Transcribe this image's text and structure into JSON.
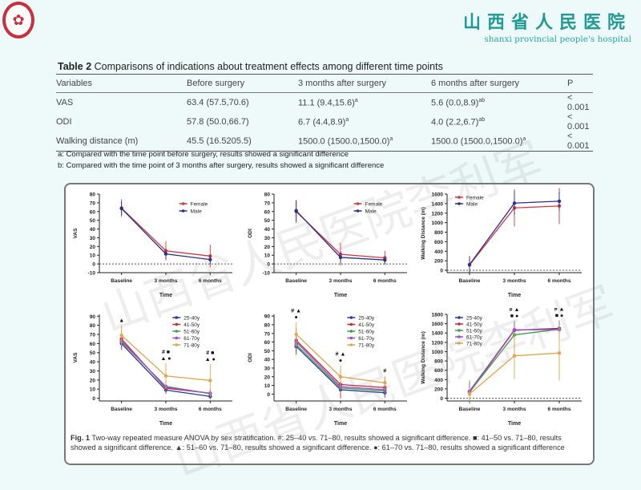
{
  "header": {
    "logo_text": "1950",
    "hospital_cn": "山西省人民医院",
    "hospital_en": "shanxi provincial people's hospital",
    "watermark": "山西省人民医院李利军"
  },
  "table": {
    "title_bold": "Table 2",
    "title": " Comparisons of indications about treatment effects among different time points",
    "columns": [
      "Variables",
      "Before surgery",
      "3 months after surgery",
      "6 months after surgery",
      "P"
    ],
    "rows": [
      {
        "variable": "VAS",
        "before": "63.4 (57.5,70.6)",
        "m3": "11.1 (9.4,15.6)",
        "m3_sup": "a",
        "m6": "5.6 (0.0,8.9)",
        "m6_sup": "ab",
        "p": "< 0.001"
      },
      {
        "variable": "ODI",
        "before": "57.8 (50.0,66.7)",
        "m3": "6.7 (4.4,8.9)",
        "m3_sup": "a",
        "m6": "4.0 (2.2,6.7)",
        "m6_sup": "ab",
        "p": "< 0.001"
      },
      {
        "variable": "Walking distance (m)",
        "before": "45.5 (16.5205.5)",
        "m3": "1500.0 (1500.0,1500.0)",
        "m3_sup": "a",
        "m6": "1500.0 (1500.0,1500.0)",
        "m6_sup": "a",
        "p": "< 0.001"
      }
    ],
    "footnotes": [
      "a: Compared with the time point before surgery, results showed a significant difference",
      "b: Compared with the time point of 3 months after surgery, results showed a significant difference"
    ]
  },
  "figure": {
    "caption_bold": "Fig. 1",
    "caption": " Two-way repeated measure ANOVA by sex stratification. #: 25–40 vs. 71–80, results showed a significant difference. ■: 41–50 vs. 71–80, results showed a significant difference. ▲: 51–60 vs. 71–80, results showed a significant difference. ●: 61–70 vs. 71–80, results showed a significant difference"
  },
  "chart_data": [
    {
      "type": "line",
      "categories": [
        "Baseline",
        "3 months",
        "6 months"
      ],
      "xlabel": "Time",
      "ylabel": "VAS",
      "ylim": [
        -10,
        80
      ],
      "yticks": [
        -10,
        0,
        10,
        20,
        30,
        40,
        50,
        60,
        70,
        80
      ],
      "zero_line": true,
      "legend": "top-right",
      "series": [
        {
          "name": "Female",
          "color": "#d9343f",
          "values": [
            64,
            15,
            9
          ],
          "err": [
            10,
            11,
            13
          ]
        },
        {
          "name": "Male",
          "color": "#2b2f8c",
          "values": [
            63.5,
            11.5,
            5
          ],
          "err": [
            8,
            6,
            5
          ]
        }
      ]
    },
    {
      "type": "line",
      "categories": [
        "Baseline",
        "3 months",
        "6 months"
      ],
      "xlabel": "Time",
      "ylabel": "ODI",
      "ylim": [
        -10,
        80
      ],
      "yticks": [
        -10,
        0,
        10,
        20,
        30,
        40,
        50,
        60,
        70,
        80
      ],
      "zero_line": true,
      "legend": "top-right",
      "series": [
        {
          "name": "Female",
          "color": "#d9343f",
          "values": [
            60,
            11,
            7
          ],
          "err": [
            13,
            13,
            8
          ]
        },
        {
          "name": "Male",
          "color": "#2b2f8c",
          "values": [
            61,
            7.5,
            4.5
          ],
          "err": [
            12,
            7,
            4
          ]
        }
      ]
    },
    {
      "type": "line",
      "categories": [
        "Baseline",
        "3 months",
        "6 months"
      ],
      "xlabel": "Time",
      "ylabel": "Walking Distance (m)",
      "ylim": [
        -50,
        1600
      ],
      "yticks": [
        0,
        200,
        400,
        600,
        800,
        1000,
        1200,
        1400,
        1600
      ],
      "zero_line": true,
      "legend": "top-left",
      "series": [
        {
          "name": "Female",
          "color": "#d9343f",
          "values": [
            110,
            1310,
            1350
          ],
          "err": [
            150,
            390,
            380
          ]
        },
        {
          "name": "Male",
          "color": "#2b2f8c",
          "values": [
            120,
            1410,
            1450
          ],
          "err": [
            180,
            250,
            200
          ]
        }
      ]
    },
    {
      "type": "line",
      "categories": [
        "Baseline",
        "3 months",
        "6 months"
      ],
      "xlabel": "Time",
      "ylabel": "VAS",
      "ylim": [
        -3,
        92
      ],
      "yticks": [
        0,
        10,
        20,
        30,
        40,
        50,
        60,
        70,
        80,
        90
      ],
      "zero_line": false,
      "legend": "top-center",
      "annotations": [
        "▲",
        "# ■\n▲ ●",
        "# ■\n▲ ●"
      ],
      "series": [
        {
          "name": "25-40y",
          "color": "#2b3a9a",
          "values": [
            60,
            9,
            2
          ],
          "err": [
            7,
            4,
            3
          ]
        },
        {
          "name": "41-50y",
          "color": "#c8283a",
          "values": [
            65,
            11,
            5.5
          ],
          "err": [
            9,
            5,
            4
          ]
        },
        {
          "name": "51-60y",
          "color": "#3fa34a",
          "values": [
            62,
            13,
            5
          ],
          "err": [
            8,
            5,
            4
          ]
        },
        {
          "name": "61-70y",
          "color": "#9b4fd1",
          "values": [
            63,
            12,
            5.5
          ],
          "err": [
            8,
            5,
            4
          ]
        },
        {
          "name": "71-80y",
          "color": "#e3a64a",
          "values": [
            69,
            24.5,
            19.5
          ],
          "err": [
            11,
            14,
            18
          ]
        }
      ]
    },
    {
      "type": "line",
      "categories": [
        "Baseline",
        "3 months",
        "6 months"
      ],
      "xlabel": "Time",
      "ylabel": "ODI",
      "ylim": [
        -8,
        92
      ],
      "yticks": [
        0,
        10,
        20,
        30,
        40,
        50,
        60,
        70,
        80,
        90
      ],
      "zero_line": false,
      "legend": "top-center",
      "annotations": [
        "# ▲\n●",
        "# ▲\n●",
        "#"
      ],
      "series": [
        {
          "name": "25-40y",
          "color": "#2b3a9a",
          "values": [
            55,
            5,
            1.5
          ],
          "err": [
            9,
            3,
            3
          ]
        },
        {
          "name": "41-50y",
          "color": "#c8283a",
          "values": [
            62,
            11,
            7.5
          ],
          "err": [
            14,
            16,
            12
          ]
        },
        {
          "name": "51-60y",
          "color": "#3fa34a",
          "values": [
            57,
            7,
            3.5
          ],
          "err": [
            12,
            5,
            4
          ]
        },
        {
          "name": "61-70y",
          "color": "#9b4fd1",
          "values": [
            60,
            8.5,
            5
          ],
          "err": [
            10,
            6,
            5
          ]
        },
        {
          "name": "71-80y",
          "color": "#e3a64a",
          "values": [
            69,
            20,
            13
          ],
          "err": [
            14,
            13,
            8
          ]
        }
      ]
    },
    {
      "type": "line",
      "categories": [
        "Baseline",
        "3 months",
        "6 months"
      ],
      "xlabel": "Time",
      "ylabel": "Walking Distance (m)",
      "ylim": [
        -60,
        1800
      ],
      "yticks": [
        0,
        200,
        400,
        600,
        800,
        1000,
        1200,
        1400,
        1600,
        1800
      ],
      "zero_line": true,
      "legend": "top-left",
      "annotations": [
        "",
        "# ▲\n■ ●",
        "# ▲\n■ ●"
      ],
      "series": [
        {
          "name": "25-40y",
          "color": "#2b3a9a",
          "values": [
            150,
            1460,
            1500
          ],
          "err": [
            180,
            120,
            60
          ]
        },
        {
          "name": "41-50y",
          "color": "#c8283a",
          "values": [
            120,
            1460,
            1490
          ],
          "err": [
            150,
            150,
            80
          ]
        },
        {
          "name": "51-60y",
          "color": "#3fa34a",
          "values": [
            130,
            1360,
            1480
          ],
          "err": [
            250,
            300,
            100
          ]
        },
        {
          "name": "61-70y",
          "color": "#9b4fd1",
          "values": [
            140,
            1470,
            1470
          ],
          "err": [
            160,
            150,
            200
          ]
        },
        {
          "name": "71-80y",
          "color": "#e3a64a",
          "values": [
            90,
            910,
            970
          ],
          "err": [
            120,
            500,
            590
          ]
        }
      ]
    }
  ]
}
